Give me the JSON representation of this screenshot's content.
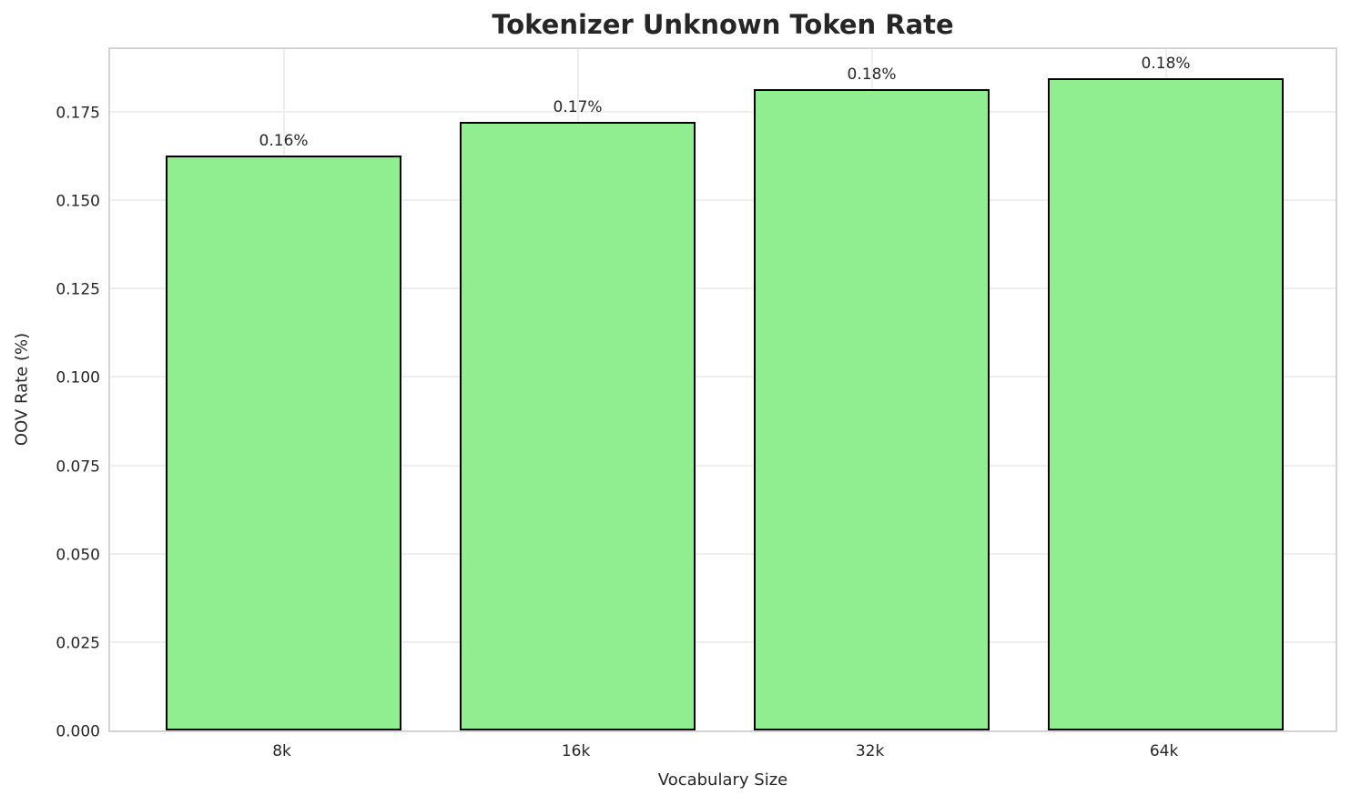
{
  "chart_data": {
    "type": "bar",
    "title": "Tokenizer Unknown Token Rate",
    "xlabel": "Vocabulary Size",
    "ylabel": "OOV Rate (%)",
    "categories": [
      "8k",
      "16k",
      "32k",
      "64k"
    ],
    "values": [
      0.1627,
      0.1722,
      0.1814,
      0.1846
    ],
    "value_labels": [
      "0.16%",
      "0.17%",
      "0.18%",
      "0.18%"
    ],
    "ytick_labels": [
      "0.000",
      "0.025",
      "0.050",
      "0.075",
      "0.100",
      "0.125",
      "0.150",
      "0.175"
    ],
    "ylim": [
      0,
      0.1938
    ],
    "grid": true,
    "legend": "none",
    "colors": {
      "bar_fill": "#90EE90",
      "bar_edge": "#000000",
      "grid": "#eeeeee",
      "spine": "#d4d4d4",
      "text": "#262626",
      "background": "#ffffff"
    }
  }
}
